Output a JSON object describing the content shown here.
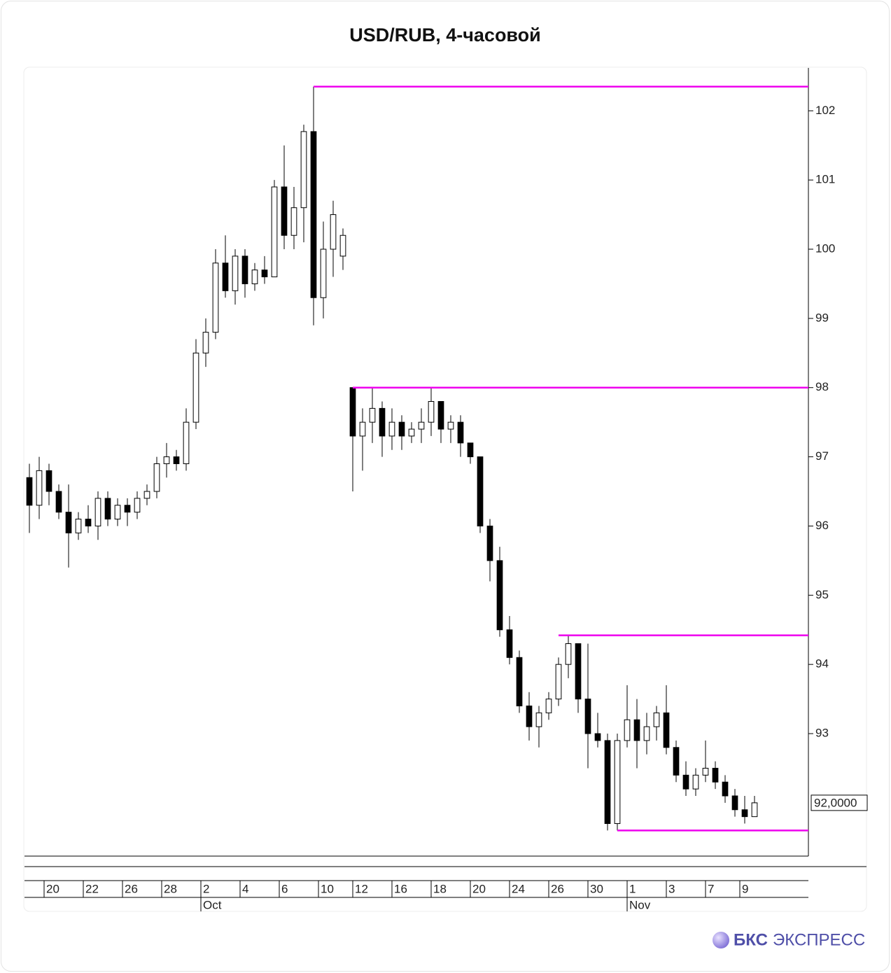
{
  "chart_data": {
    "type": "candlestick",
    "title": "USD/RUB, 4-часовой",
    "xlim": [
      -0.5,
      79.5
    ],
    "ylim": [
      91.23,
      102.62
    ],
    "yticks": [
      93,
      94,
      95,
      96,
      97,
      98,
      99,
      100,
      101,
      102
    ],
    "xticks": [
      {
        "value": 1.5,
        "label": "20"
      },
      {
        "value": 5.5,
        "label": "22"
      },
      {
        "value": 9.5,
        "label": "26"
      },
      {
        "value": 13.5,
        "label": "28"
      },
      {
        "value": 17.5,
        "label": "2"
      },
      {
        "value": 21.5,
        "label": "4"
      },
      {
        "value": 25.5,
        "label": "6"
      },
      {
        "value": 29.5,
        "label": "10"
      },
      {
        "value": 33,
        "label": "12"
      },
      {
        "value": 37,
        "label": "16"
      },
      {
        "value": 41,
        "label": "18"
      },
      {
        "value": 45,
        "label": "20"
      },
      {
        "value": 49,
        "label": "24"
      },
      {
        "value": 53,
        "label": "26"
      },
      {
        "value": 57,
        "label": "30"
      },
      {
        "value": 61,
        "label": "1"
      },
      {
        "value": 65,
        "label": "3"
      },
      {
        "value": 69,
        "label": "7"
      },
      {
        "value": 72.5,
        "label": "9"
      }
    ],
    "month_ticks": [
      {
        "value": 17.5,
        "label": "Oct"
      },
      {
        "value": 61,
        "label": "Nov"
      }
    ],
    "x": [
      0,
      1,
      2,
      3,
      4,
      5,
      6,
      7,
      8,
      9,
      10,
      11,
      12,
      13,
      14,
      15,
      16,
      17,
      18,
      19,
      20,
      21,
      22,
      23,
      24,
      25,
      26,
      27,
      28,
      29,
      30,
      31,
      32,
      33,
      34,
      35,
      36,
      37,
      38,
      39,
      40,
      41,
      42,
      43,
      44,
      45,
      46,
      47,
      48,
      49,
      50,
      51,
      52,
      53,
      54,
      55,
      56,
      57,
      58,
      59,
      60,
      61,
      62,
      63,
      64,
      65,
      66,
      67,
      68,
      69,
      70,
      71,
      72,
      73,
      74
    ],
    "open": [
      96.7,
      96.3,
      96.8,
      96.5,
      96.2,
      95.9,
      96.1,
      96.0,
      96.4,
      96.1,
      96.3,
      96.2,
      96.4,
      96.5,
      96.9,
      97.0,
      96.9,
      97.5,
      98.5,
      98.8,
      99.8,
      99.4,
      99.9,
      99.5,
      99.7,
      99.6,
      100.9,
      100.2,
      100.6,
      101.7,
      99.3,
      100.0,
      99.9,
      98.0,
      97.3,
      97.5,
      97.7,
      97.3,
      97.5,
      97.3,
      97.4,
      97.5,
      97.8,
      97.4,
      97.5,
      97.2,
      97.0,
      96.0,
      95.5,
      94.5,
      94.1,
      93.4,
      93.1,
      93.3,
      93.5,
      94.0,
      94.3,
      93.5,
      93.0,
      92.9,
      91.7,
      92.9,
      93.2,
      92.9,
      93.1,
      93.3,
      92.8,
      92.4,
      92.2,
      92.4,
      92.5,
      92.3,
      92.1,
      91.9,
      91.8
    ],
    "high": [
      96.9,
      97.0,
      96.9,
      96.6,
      96.6,
      96.2,
      96.3,
      96.5,
      96.5,
      96.4,
      96.4,
      96.5,
      96.6,
      97.0,
      97.2,
      97.1,
      97.7,
      98.7,
      99.0,
      100.0,
      100.2,
      100.0,
      100.0,
      99.8,
      99.9,
      101.0,
      101.5,
      100.9,
      101.8,
      102.35,
      100.4,
      100.7,
      100.3,
      98.0,
      97.7,
      98.0,
      97.8,
      97.7,
      97.6,
      97.5,
      97.7,
      98.0,
      97.8,
      97.6,
      97.6,
      97.2,
      97.0,
      96.1,
      95.7,
      94.7,
      94.2,
      93.6,
      93.4,
      93.6,
      94.1,
      94.42,
      94.3,
      94.3,
      93.3,
      93.0,
      93.0,
      93.7,
      93.5,
      93.3,
      93.4,
      93.7,
      92.9,
      92.6,
      92.5,
      92.9,
      92.6,
      92.4,
      92.2,
      92.1,
      92.1
    ],
    "low": [
      95.9,
      96.1,
      96.3,
      96.1,
      95.4,
      95.8,
      95.9,
      95.8,
      96.0,
      96.0,
      96.0,
      96.1,
      96.3,
      96.4,
      96.7,
      96.8,
      96.8,
      97.4,
      98.3,
      98.7,
      99.3,
      99.2,
      99.3,
      99.4,
      99.5,
      99.6,
      100.0,
      100.0,
      100.1,
      98.9,
      99.0,
      99.6,
      99.7,
      96.5,
      96.8,
      97.2,
      97.0,
      97.1,
      97.1,
      97.2,
      97.2,
      97.3,
      97.2,
      97.2,
      97.0,
      96.9,
      95.9,
      95.2,
      94.4,
      94.0,
      93.3,
      92.9,
      92.8,
      93.2,
      93.4,
      93.8,
      93.3,
      92.5,
      92.8,
      91.6,
      91.6,
      92.8,
      92.5,
      92.7,
      92.9,
      92.7,
      92.3,
      92.1,
      92.1,
      92.3,
      92.2,
      92.0,
      91.8,
      91.7,
      91.8
    ],
    "close": [
      96.3,
      96.8,
      96.5,
      96.2,
      95.9,
      96.1,
      96.0,
      96.4,
      96.1,
      96.3,
      96.2,
      96.4,
      96.5,
      96.9,
      97.0,
      96.9,
      97.5,
      98.5,
      98.8,
      99.8,
      99.4,
      99.9,
      99.5,
      99.7,
      99.6,
      100.9,
      100.2,
      100.6,
      101.7,
      99.3,
      100.0,
      100.5,
      100.2,
      97.3,
      97.5,
      97.7,
      97.3,
      97.5,
      97.3,
      97.4,
      97.5,
      97.8,
      97.4,
      97.5,
      97.2,
      97.0,
      96.0,
      95.5,
      94.5,
      94.1,
      93.4,
      93.1,
      93.3,
      93.5,
      94.0,
      94.3,
      93.5,
      93.0,
      92.9,
      91.7,
      92.9,
      93.2,
      92.9,
      93.1,
      93.3,
      92.8,
      92.4,
      92.2,
      92.4,
      92.5,
      92.3,
      92.1,
      91.9,
      91.8,
      92.0
    ],
    "up_color": "#ffffff",
    "down_color": "#000000",
    "levels": [
      {
        "value": 102.35,
        "x": 29
      },
      {
        "value": 98.0,
        "x": 33
      },
      {
        "value": 94.42,
        "x": 54
      },
      {
        "value": 91.6,
        "x": 60
      }
    ],
    "level_color": "#ee00ee",
    "last_price": {
      "value": 92,
      "label": "92,0000"
    }
  },
  "branding": {
    "brand": "БКС",
    "product": "ЭКСПРЕСС"
  }
}
